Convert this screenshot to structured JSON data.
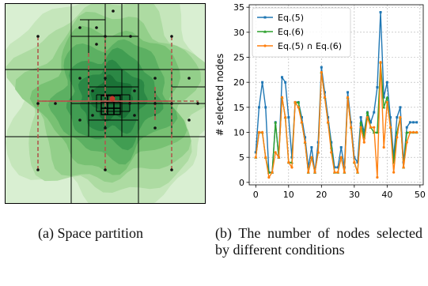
{
  "captions": {
    "a": "(a) Space partition",
    "b": "(b) The number of nodes selected by different conditions"
  },
  "colors": {
    "green_light": "#cfe9c5",
    "green_dark": "#1f8a3d",
    "eq5": "#1f77b4",
    "eq6": "#2ca02c",
    "intersect": "#ff7f0e"
  },
  "chart_data": {
    "type": "line",
    "title": "",
    "xlabel": "",
    "ylabel": "# selected nodes",
    "xlim": [
      -2,
      51
    ],
    "ylim": [
      -0.5,
      35.5
    ],
    "xticks": [
      0,
      10,
      20,
      30,
      40,
      50
    ],
    "yticks": [
      0,
      5,
      10,
      15,
      20,
      25,
      30,
      35
    ],
    "grid": true,
    "legend_position": "top-left",
    "x": [
      0,
      1,
      2,
      3,
      4,
      5,
      6,
      7,
      8,
      9,
      10,
      11,
      12,
      13,
      14,
      15,
      16,
      17,
      18,
      19,
      20,
      21,
      22,
      23,
      24,
      25,
      26,
      27,
      28,
      29,
      30,
      31,
      32,
      33,
      34,
      35,
      36,
      37,
      38,
      39,
      40,
      41,
      42,
      43,
      44,
      45,
      46,
      47,
      48,
      49
    ],
    "series": [
      {
        "name": "Eq.(5)",
        "color": "#1f77b4",
        "marker": "square",
        "values": [
          6,
          15,
          20,
          15,
          2,
          2,
          12,
          5,
          21,
          20,
          13,
          5,
          16,
          16,
          13,
          9,
          3,
          7,
          2,
          8,
          23,
          18,
          13,
          8,
          3,
          3,
          7,
          3,
          18,
          12,
          5,
          4,
          13,
          10,
          14,
          12,
          14,
          19,
          34,
          17,
          20,
          13,
          5,
          13,
          15,
          4,
          11,
          12,
          12,
          12
        ]
      },
      {
        "name": "Eq.(6)",
        "color": "#2ca02c",
        "marker": "triangle",
        "values": [
          5,
          10,
          10,
          5,
          2,
          2,
          12,
          5,
          17,
          13,
          4,
          4,
          16,
          16,
          12,
          8,
          2,
          5,
          2,
          6,
          22,
          17,
          12,
          7,
          2,
          2,
          5,
          2,
          17,
          11,
          4,
          2,
          12,
          9,
          14,
          11,
          10,
          10,
          24,
          15,
          17,
          11,
          4,
          10,
          13,
          3,
          10,
          10,
          10,
          10
        ]
      },
      {
        "name": "Eq.(5) ∩ Eq.(6)",
        "color": "#ff7f0e",
        "marker": "circle",
        "values": [
          5,
          10,
          10,
          5,
          1,
          2,
          6,
          5,
          17,
          13,
          4,
          3,
          16,
          15,
          12,
          8,
          2,
          5,
          2,
          6,
          22,
          17,
          12,
          6,
          2,
          2,
          5,
          2,
          17,
          11,
          4,
          2,
          11,
          8,
          13,
          11,
          11,
          1,
          24,
          7,
          16,
          11,
          2,
          9,
          13,
          3,
          8,
          10,
          10,
          10
        ]
      }
    ]
  }
}
